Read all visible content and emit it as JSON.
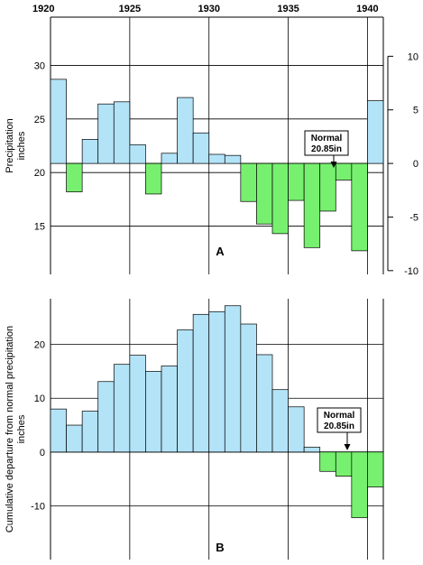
{
  "colors": {
    "positive": "#b3e3f7",
    "negative": "#77f06f",
    "stroke": "#000000"
  },
  "year_labels": [
    "1920",
    "1925",
    "1930",
    "1935",
    "1940"
  ],
  "chart_data": [
    {
      "type": "bar",
      "panel_label": "A",
      "x": [
        1920,
        1921,
        1922,
        1923,
        1924,
        1925,
        1926,
        1927,
        1928,
        1929,
        1930,
        1931,
        1932,
        1933,
        1934,
        1935,
        1936,
        1937,
        1938,
        1939,
        1940
      ],
      "values": [
        28.7,
        18.2,
        23.1,
        26.4,
        26.6,
        22.6,
        18.0,
        21.8,
        27.0,
        23.7,
        21.7,
        21.6,
        17.3,
        15.2,
        14.3,
        17.4,
        13.0,
        16.4,
        19.3,
        12.7,
        26.7
      ],
      "baseline": 20.85,
      "ylabel": "Precipitation inches",
      "ylim": [
        10.5,
        34.5
      ],
      "left_ticks": [
        15,
        20,
        25,
        30
      ],
      "right_ticks": [
        -10,
        -5,
        0,
        5,
        10
      ],
      "right_tick_labels": [
        "-10",
        "-5",
        "0",
        "5",
        "10"
      ],
      "normal_annotation": [
        "Normal",
        "20.85in"
      ],
      "grid": true
    },
    {
      "type": "bar",
      "panel_label": "B",
      "x": [
        1920,
        1921,
        1922,
        1923,
        1924,
        1925,
        1926,
        1927,
        1928,
        1929,
        1930,
        1931,
        1932,
        1933,
        1934,
        1935,
        1936,
        1937,
        1938,
        1939,
        1940
      ],
      "values": [
        8.0,
        5.0,
        7.6,
        13.1,
        16.3,
        18.0,
        15.0,
        16.0,
        22.7,
        25.6,
        26.1,
        27.2,
        23.8,
        18.1,
        11.6,
        8.4,
        0.9,
        -3.6,
        -4.5,
        -12.2,
        -6.5
      ],
      "baseline": 0,
      "ylabel": "Cumulative departure from normal precipitation inches",
      "ylim": [
        -20,
        28.5
      ],
      "left_ticks": [
        -10,
        0,
        10,
        20
      ],
      "left_tick_labels": [
        "-10",
        "0",
        "10",
        "20"
      ],
      "normal_annotation": [
        "Normal",
        "20.85in"
      ],
      "grid": true
    }
  ]
}
